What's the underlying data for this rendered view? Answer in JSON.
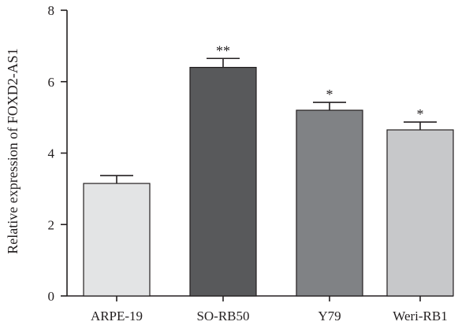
{
  "chart_data": {
    "type": "bar",
    "title": "",
    "xlabel": "",
    "ylabel": "Relative expression of FOXD2-AS1",
    "ylim": [
      0,
      8
    ],
    "yticks": [
      0,
      2,
      4,
      6,
      8
    ],
    "categories": [
      "ARPE-19",
      "SO-RB50",
      "Y79",
      "Weri-RB1"
    ],
    "values": [
      3.15,
      6.4,
      5.2,
      4.65
    ],
    "errors": [
      0.22,
      0.25,
      0.22,
      0.22
    ],
    "significance": [
      "",
      "**",
      "*",
      "*"
    ],
    "colors": [
      "#e3e4e5",
      "#58595b",
      "#808285",
      "#c7c8ca"
    ],
    "grid": false,
    "legend": "none"
  }
}
